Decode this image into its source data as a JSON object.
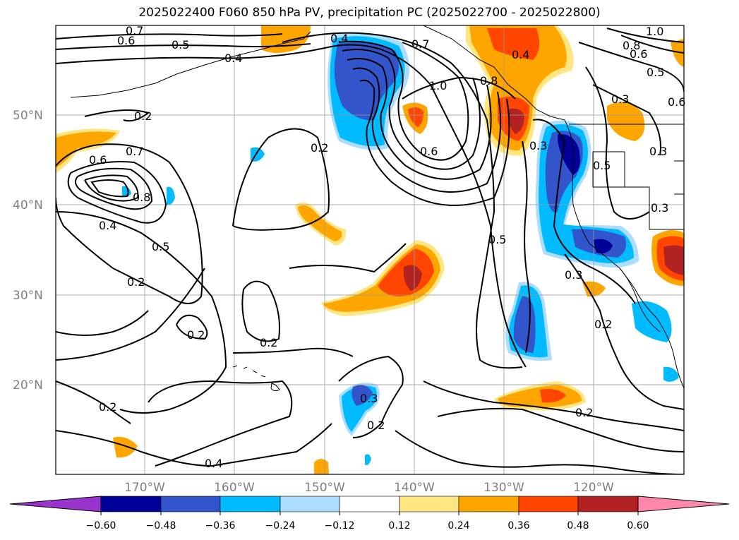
{
  "title": "2025022400 F060 850 hPa PV, precipitation PC (2025022700 - 2025022800)",
  "map": {
    "projection": "cylindrical",
    "lat_labels": [
      "50°N",
      "40°N",
      "30°N",
      "20°N"
    ],
    "lon_labels": [
      "170°W",
      "160°W",
      "150°W",
      "140°W",
      "130°W",
      "120°W"
    ],
    "grid": true,
    "features": [
      "coastlines",
      "country-borders",
      "state-borders",
      "Hawaiian islands",
      "Aleutian islands"
    ]
  },
  "contours": {
    "field": "850 hPa PV",
    "color": "#000000",
    "labels": [
      "0.7",
      "0.6",
      "0.5",
      "0.4",
      "0.4",
      "0.7",
      "1.0",
      "0.8",
      "0.4",
      "1.0",
      "0.8",
      "0.6",
      "0.5",
      "0.3",
      "0.6",
      "0.2",
      "0.6",
      "0.7",
      "0.8",
      "0.4",
      "0.5",
      "0.2",
      "0.6",
      "0.3",
      "0.5",
      "0.3",
      "0.3",
      "0.5",
      "0.2",
      "0.2",
      "0.3",
      "0.2",
      "0.2",
      "0.3",
      "0.2",
      "0.2",
      "0.2",
      "0.4"
    ]
  },
  "colorbar": {
    "field": "precipitation PC",
    "tick_labels": [
      "−0.60",
      "−0.48",
      "−0.36",
      "−0.24",
      "−0.12",
      "0.12",
      "0.24",
      "0.36",
      "0.48",
      "0.60"
    ],
    "colors": [
      "#9933cc",
      "#000099",
      "#3355cc",
      "#00bbff",
      "#aaddff",
      "#ffffff",
      "#ffe680",
      "#ffa500",
      "#ff4500",
      "#b22222",
      "#ff88aa"
    ]
  }
}
